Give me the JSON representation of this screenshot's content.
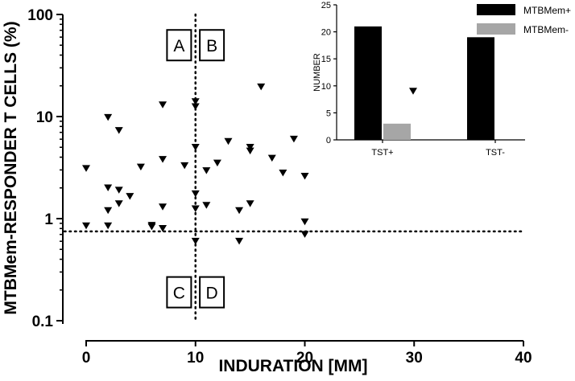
{
  "chart_data": [
    {
      "type": "scatter",
      "title": "",
      "xlabel": "INDURATION [MM]",
      "ylabel": "MTBMem-RESPONDER T CELLS (%)",
      "xlim": [
        0,
        40
      ],
      "ylim": [
        0.1,
        100
      ],
      "yscale": "log",
      "x_ticks": [
        0,
        10,
        20,
        30,
        40
      ],
      "x_tick_labels": [
        "0",
        "10",
        "20",
        "30",
        "40"
      ],
      "y_ticks": [
        0.1,
        1,
        10,
        100
      ],
      "y_tick_labels": [
        "0.1",
        "1",
        "10",
        "100"
      ],
      "marker": "inverted-triangle",
      "color": "#000000",
      "threshold_x": 10,
      "threshold_y": 0.75,
      "quadrant_labels": [
        {
          "text": "A",
          "x": 8.5,
          "y": 50
        },
        {
          "text": "B",
          "x": 11.5,
          "y": 50
        },
        {
          "text": "C",
          "x": 8.5,
          "y": 0.19
        },
        {
          "text": "D",
          "x": 11.5,
          "y": 0.19
        }
      ],
      "points": [
        {
          "x": 0,
          "y": 3.1
        },
        {
          "x": 0,
          "y": 0.85
        },
        {
          "x": 2,
          "y": 9.8
        },
        {
          "x": 2,
          "y": 2.0
        },
        {
          "x": 2,
          "y": 1.2
        },
        {
          "x": 2,
          "y": 0.85
        },
        {
          "x": 3,
          "y": 7.3
        },
        {
          "x": 3,
          "y": 1.9
        },
        {
          "x": 3,
          "y": 1.4
        },
        {
          "x": 4,
          "y": 1.65
        },
        {
          "x": 5,
          "y": 3.2
        },
        {
          "x": 6,
          "y": 0.86
        },
        {
          "x": 6,
          "y": 0.83
        },
        {
          "x": 7,
          "y": 13.0
        },
        {
          "x": 7,
          "y": 3.8
        },
        {
          "x": 7,
          "y": 1.3
        },
        {
          "x": 7,
          "y": 0.8
        },
        {
          "x": 9,
          "y": 3.3
        },
        {
          "x": 10,
          "y": 14.0
        },
        {
          "x": 10,
          "y": 12.5
        },
        {
          "x": 10,
          "y": 5.0
        },
        {
          "x": 10,
          "y": 1.75
        },
        {
          "x": 10,
          "y": 1.25
        },
        {
          "x": 10,
          "y": 0.6
        },
        {
          "x": 11,
          "y": 2.95
        },
        {
          "x": 11,
          "y": 1.35
        },
        {
          "x": 12,
          "y": 3.5
        },
        {
          "x": 13,
          "y": 5.7
        },
        {
          "x": 14,
          "y": 1.2
        },
        {
          "x": 14,
          "y": 0.6
        },
        {
          "x": 15,
          "y": 5.0
        },
        {
          "x": 15,
          "y": 4.6
        },
        {
          "x": 15,
          "y": 1.4
        },
        {
          "x": 16,
          "y": 19.5
        },
        {
          "x": 17,
          "y": 3.9
        },
        {
          "x": 18,
          "y": 2.8
        },
        {
          "x": 19,
          "y": 6.0
        },
        {
          "x": 20,
          "y": 2.6
        },
        {
          "x": 20,
          "y": 0.93
        },
        {
          "x": 20,
          "y": 0.7
        }
      ]
    },
    {
      "type": "bar",
      "title": "",
      "xlabel": "",
      "ylabel": "NUMBER",
      "ylim": [
        0,
        25
      ],
      "y_ticks": [
        0,
        5,
        10,
        15,
        20,
        25
      ],
      "categories": [
        "TST+",
        "TST-"
      ],
      "series": [
        {
          "name": "MTBMem+",
          "color": "#000000",
          "values": [
            21,
            19
          ]
        },
        {
          "name": "MTBMem-",
          "color": "#a6a6a6",
          "values": [
            3,
            0
          ]
        }
      ],
      "legend": "top-right",
      "extra_markers": [
        {
          "category": "TST+",
          "y": 9
        }
      ]
    }
  ]
}
